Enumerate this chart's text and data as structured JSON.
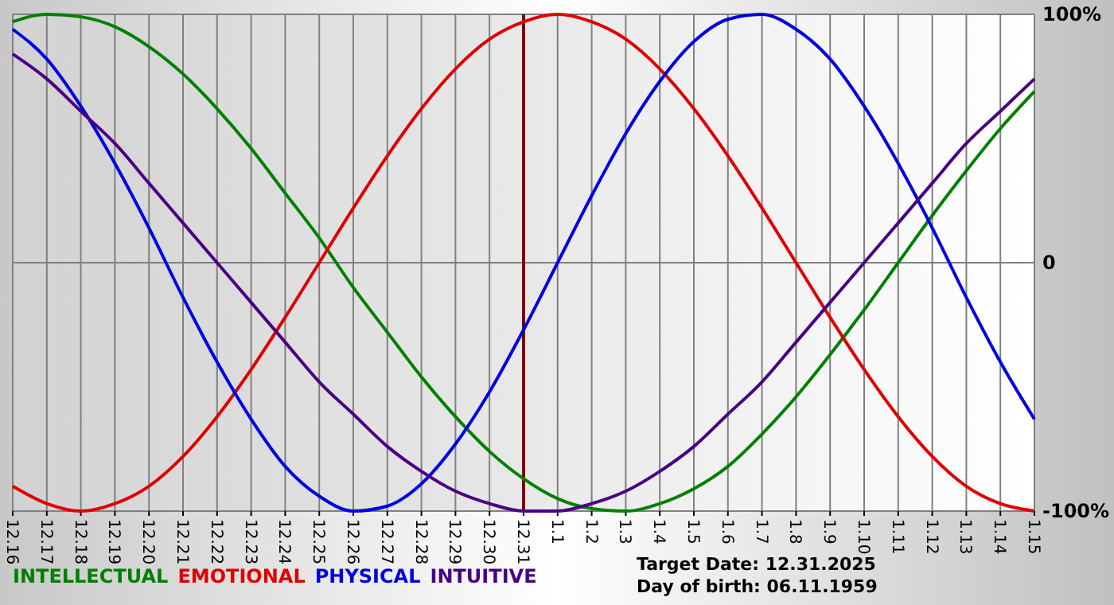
{
  "chart_data": {
    "type": "line",
    "categories": [
      "12.16",
      "12.17",
      "12.18",
      "12.19",
      "12.20",
      "12.21",
      "12.22",
      "12.23",
      "12.24",
      "12.25",
      "12.26",
      "12.27",
      "12.28",
      "12.29",
      "12.30",
      "12.31",
      "1.1",
      "1.2",
      "1.3",
      "1.4",
      "1.5",
      "1.6",
      "1.7",
      "1.8",
      "1.9",
      "1.10",
      "1.11",
      "1.12",
      "1.13",
      "1.14",
      "1.15"
    ],
    "series": [
      {
        "name": "INTELLECTUAL",
        "color": "#008000",
        "values": [
          97,
          100,
          99,
          95,
          87,
          76,
          62,
          46,
          28,
          10,
          -10,
          -28,
          -46,
          -62,
          -76,
          -87,
          -95,
          -99,
          -100,
          -97,
          -91,
          -82,
          -69,
          -54,
          -37,
          -19,
          0,
          19,
          37,
          54,
          69
        ]
      },
      {
        "name": "EMOTIONAL",
        "color": "#e00000",
        "values": [
          -90,
          -97,
          -100,
          -97,
          -90,
          -78,
          -62,
          -43,
          -22,
          0,
          22,
          43,
          62,
          78,
          90,
          97,
          100,
          97,
          90,
          78,
          62,
          43,
          22,
          0,
          -22,
          -43,
          -62,
          -78,
          -90,
          -97,
          -100
        ]
      },
      {
        "name": "PHYSICAL",
        "color": "#0000e0",
        "values": [
          94,
          82,
          63,
          40,
          14,
          -14,
          -40,
          -63,
          -82,
          -94,
          -100,
          -98,
          -89,
          -73,
          -52,
          -27,
          0,
          27,
          52,
          73,
          89,
          98,
          100,
          94,
          82,
          63,
          40,
          14,
          -14,
          -40,
          -63
        ]
      },
      {
        "name": "INTUITIVE",
        "color": "#4b0082",
        "values": [
          84,
          74,
          61,
          48,
          32,
          16,
          0,
          -16,
          -32,
          -48,
          -61,
          -74,
          -84,
          -92,
          -97,
          -100,
          -100,
          -97,
          -92,
          -84,
          -74,
          -61,
          -48,
          -32,
          -16,
          0,
          16,
          32,
          48,
          61,
          74
        ]
      }
    ],
    "ylim": [
      -100,
      100
    ],
    "yticks": [
      {
        "value": 100,
        "label": "100%"
      },
      0,
      {
        "value": -100,
        "label": "-100%"
      }
    ],
    "grid": true,
    "legend": "bottom",
    "ref_lines": [
      {
        "axis": "x",
        "value": "12.31",
        "color": "#800000"
      }
    ],
    "annotations": [
      "Target Date: 12.31.2025",
      "Day of birth: 06.11.1959"
    ]
  }
}
